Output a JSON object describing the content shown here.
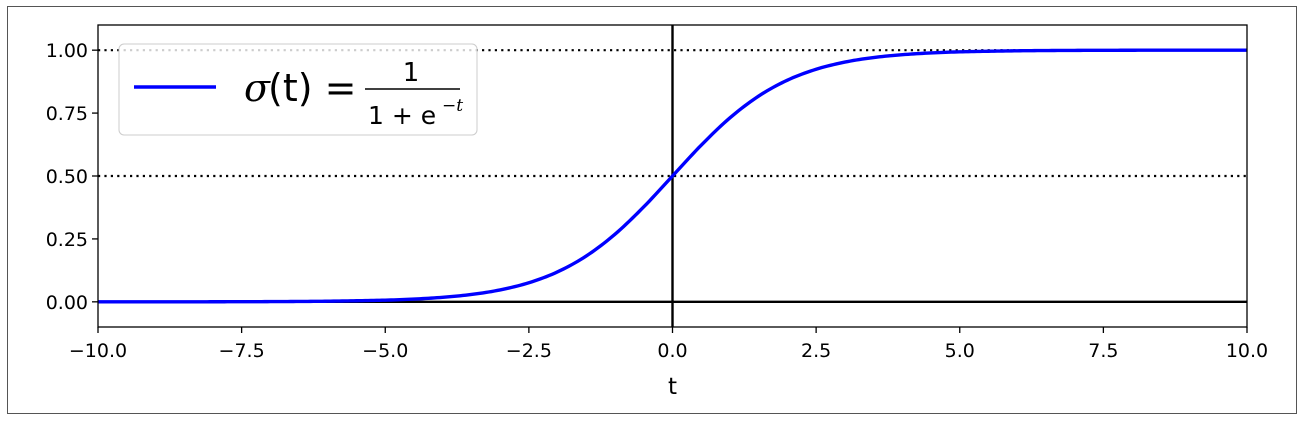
{
  "chart_data": {
    "type": "line",
    "title": "",
    "xlabel": "t",
    "ylabel": "",
    "xlim": [
      -10,
      10
    ],
    "ylim": [
      -0.1,
      1.1
    ],
    "xticks": [
      -10,
      -7.5,
      -5,
      -2.5,
      0,
      2.5,
      5,
      7.5,
      10
    ],
    "xtick_labels": [
      "−10.0",
      "−7.5",
      "−5.0",
      "−2.5",
      "0.0",
      "2.5",
      "5.0",
      "7.5",
      "10.0"
    ],
    "yticks": [
      0,
      0.25,
      0.5,
      0.75,
      1
    ],
    "ytick_labels": [
      "0.00",
      "0.25",
      "0.50",
      "0.75",
      "1.00"
    ],
    "grid": false,
    "series": [
      {
        "name": "σ(t) = 1 / (1 + e^−t)",
        "color": "#0000ff",
        "x": [
          -10,
          -9,
          -8,
          -7,
          -6,
          -5,
          -4.5,
          -4,
          -3.5,
          -3,
          -2.5,
          -2,
          -1.5,
          -1,
          -0.5,
          0,
          0.5,
          1,
          1.5,
          2,
          2.5,
          3,
          3.5,
          4,
          4.5,
          5,
          6,
          7,
          8,
          9,
          10
        ],
        "values": [
          0.0,
          0.0001,
          0.0003,
          0.0009,
          0.0025,
          0.0067,
          0.011,
          0.018,
          0.0293,
          0.0474,
          0.0759,
          0.1192,
          0.1824,
          0.2689,
          0.3775,
          0.5,
          0.6225,
          0.7311,
          0.8176,
          0.8808,
          0.9241,
          0.9526,
          0.9707,
          0.982,
          0.989,
          0.9933,
          0.9975,
          0.9991,
          0.9997,
          0.9999,
          1.0
        ]
      }
    ],
    "reference_lines": {
      "dotted_horizontal": [
        0.5,
        1.0
      ],
      "solid_horizontal": [
        0
      ],
      "solid_vertical": [
        0
      ],
      "color": "#000000"
    },
    "legend": {
      "placement": "top-left",
      "sigma": "σ",
      "arg": "(t) =",
      "numerator": "1",
      "denominator_base": "1 + e",
      "denominator_exp": "−t"
    }
  }
}
